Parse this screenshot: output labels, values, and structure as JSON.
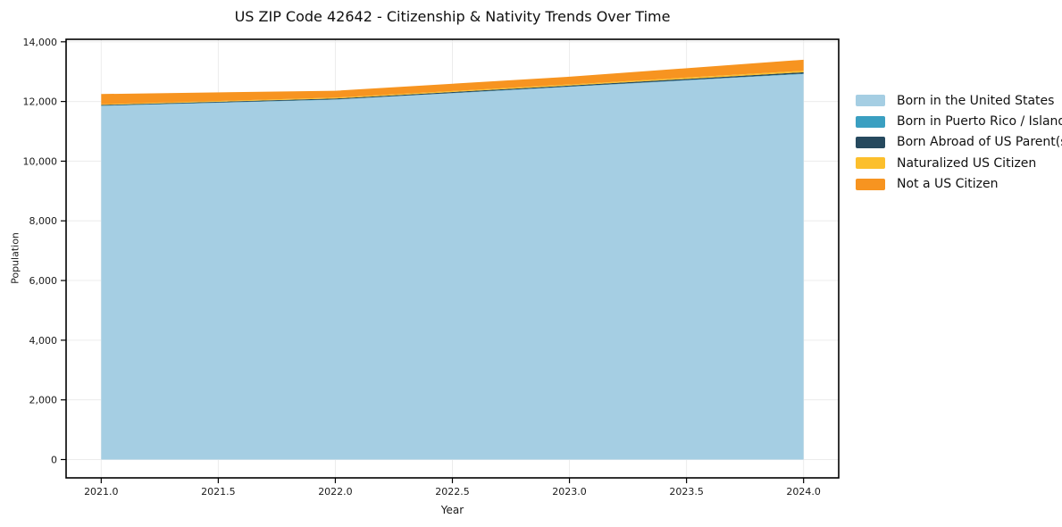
{
  "chart_data": {
    "type": "area",
    "stacked": true,
    "title": "US ZIP Code 42642 - Citizenship & Nativity Trends Over Time",
    "xlabel": "Year",
    "ylabel": "Population",
    "x": [
      2021,
      2022,
      2023,
      2024
    ],
    "series": [
      {
        "name": "Born in the United States",
        "color": "#a5cee3",
        "values": [
          11850,
          12060,
          12490,
          12920
        ]
      },
      {
        "name": "Born in Puerto Rico / Islands",
        "color": "#3a9fc1",
        "values": [
          10,
          10,
          10,
          15
        ]
      },
      {
        "name": "Born Abroad of US Parent(s)",
        "color": "#26495e",
        "values": [
          25,
          30,
          35,
          45
        ]
      },
      {
        "name": "Naturalized US Citizen",
        "color": "#fcbf2c",
        "values": [
          20,
          30,
          35,
          50
        ]
      },
      {
        "name": "Not a US Citizen",
        "color": "#f79420",
        "values": [
          345,
          230,
          260,
          370
        ]
      }
    ],
    "xlim": [
      2020.85,
      2024.15
    ],
    "ylim": [
      -614,
      14084
    ],
    "xticks": [
      2021.0,
      2021.5,
      2022.0,
      2022.5,
      2023.0,
      2023.5,
      2024.0
    ],
    "xtick_labels": [
      "2021.0",
      "2021.5",
      "2022.0",
      "2022.5",
      "2023.0",
      "2023.5",
      "2024.0"
    ],
    "yticks": [
      0,
      2000,
      4000,
      6000,
      8000,
      10000,
      12000,
      14000
    ],
    "ytick_labels": [
      "0",
      "2,000",
      "4,000",
      "6,000",
      "8,000",
      "10,000",
      "12,000",
      "14,000"
    ],
    "grid": true,
    "legend_position": "right of plot, outside"
  },
  "colors": {
    "background": "#ffffff",
    "grid": "#ececec",
    "spine": "#000000",
    "tick_text": "#1a1a1a"
  }
}
